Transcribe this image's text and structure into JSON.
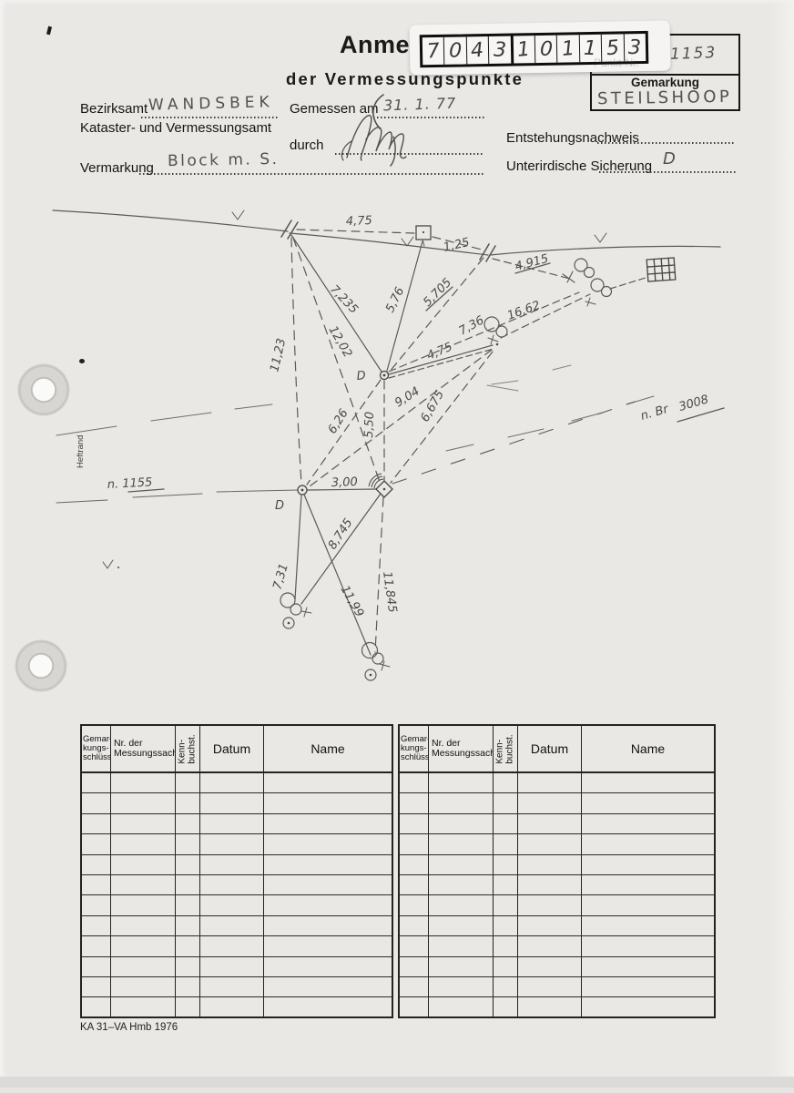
{
  "document": {
    "title_visible": "Anmes",
    "subtitle": "der Vermessungspunkte",
    "footer_code": "KA 31–VA Hmb 1976"
  },
  "number_label": {
    "digits": [
      "7",
      "0",
      "4",
      "3",
      "1",
      "0",
      "1",
      "1",
      "5",
      "3"
    ]
  },
  "point_box": {
    "covered_label": "Punkt-Nr.",
    "point_number": "1153",
    "gemarkung_label": "Gemarkung",
    "gemarkung_value": "STEILSHOOP"
  },
  "form_fields": {
    "bezirksamt_label": "Bezirksamt",
    "bezirksamt_value": "WANDSBEK",
    "amt_line": "Kataster- und Vermessungsamt",
    "gemessen_am_label": "Gemessen am",
    "gemessen_am_value": "31. 1. 77",
    "durch_label": "durch",
    "entstehungsnachweis_label": "Entstehungsnachweis",
    "vermarkung_label": "Vermarkung",
    "vermarkung_value": "Block m. S.",
    "sicherung_label": "Unterirdische Sicherung",
    "sicherung_value": "D"
  },
  "sketch": {
    "heftrand_label": "Heftrand",
    "point_d_upper": "D",
    "point_d_lower": "D",
    "ref_1155": "n. 1155",
    "ref_br": "n. Br",
    "ref_br_number": "3008",
    "measurements": {
      "top_475": "4,75",
      "v125": "1,25",
      "v4915": "4,915",
      "v7235": "7,235",
      "v576": "5,76",
      "v5705": "5,705",
      "v736": "7,36",
      "v1662": "16,62",
      "v1202": "12,02",
      "v1123": "11,23",
      "mid_475": "4,75",
      "v904": "9,04",
      "v6675": "6,675",
      "v626": "6,26",
      "v550": "5,50",
      "v300": "3,00",
      "v8745": "8,745",
      "v731": "7,31",
      "v1199": "11,99",
      "v11845": "11,845"
    }
  },
  "record_table": {
    "headers": [
      "Gemar-\nkungs-\nschlüssel",
      "Nr. der\nMessungssache",
      "Kenn-\nbuchst.",
      "Datum",
      "Name"
    ]
  }
}
